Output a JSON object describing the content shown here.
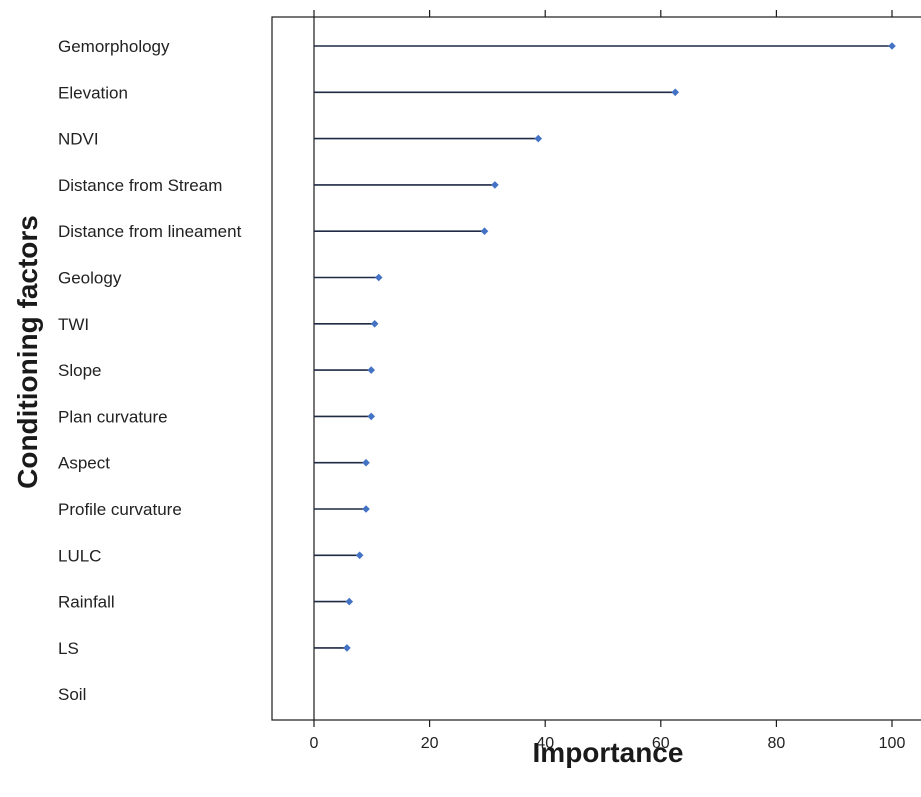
{
  "chart_data": {
    "type": "lollipop",
    "categories": [
      "Gemorphology",
      "Elevation",
      "NDVI",
      "Distance from Stream",
      "Distance from lineament",
      "Geology",
      "TWI",
      "Slope",
      "Plan curvature",
      "Aspect",
      "Profile curvature",
      "LULC",
      "Rainfall",
      "LS",
      "Soil"
    ],
    "values": [
      100,
      62.5,
      38.8,
      31.3,
      29.5,
      11.2,
      10.5,
      9.9,
      9.9,
      9.0,
      9.0,
      7.9,
      6.1,
      5.7,
      0
    ],
    "xlabel": "Importance",
    "ylabel": "Conditioning factors",
    "xlim": [
      -7,
      105
    ],
    "xticks": [
      0,
      20,
      40,
      60,
      80,
      100
    ],
    "tick_labels": [
      "0",
      "20",
      "40",
      "60",
      "80",
      "100"
    ],
    "colors": {
      "marker": "#4472c4",
      "stem": "#1f2a44",
      "axis": "#1a1a1a"
    }
  }
}
